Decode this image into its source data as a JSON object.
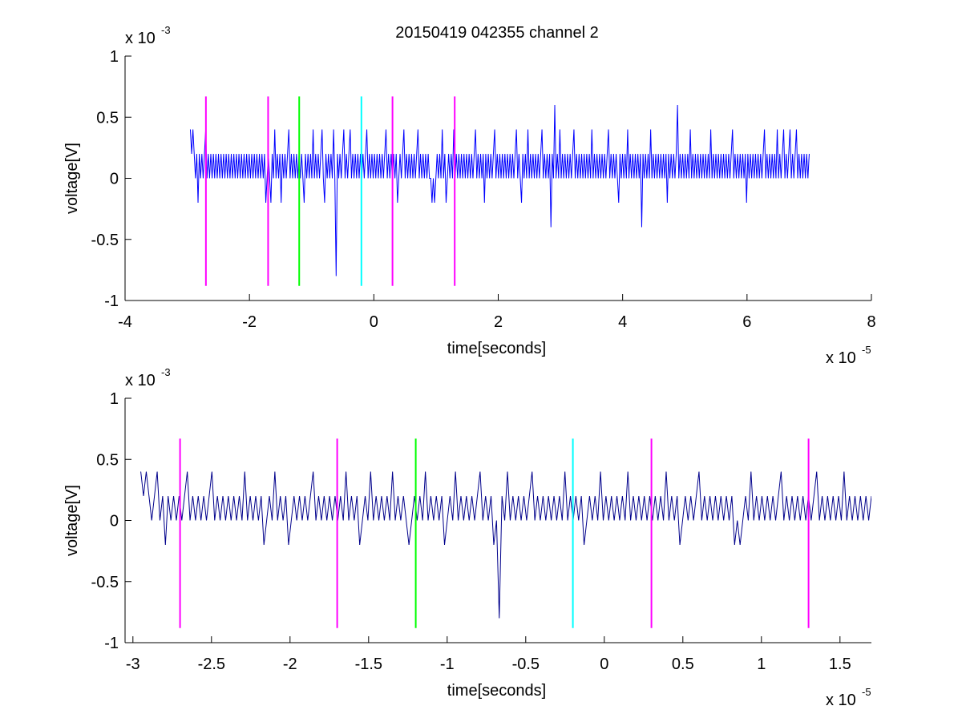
{
  "figure": {
    "title": "20150419 042355 channel 2"
  },
  "chart_data": [
    {
      "type": "line",
      "title": "20150419 042355 channel 2",
      "xlabel": "time[seconds]",
      "ylabel": "voltage[V]",
      "x_exponent_label": "x 10",
      "x_exponent": "-5",
      "y_exponent_label": "x 10",
      "y_exponent": "-3",
      "xlim": [
        -4,
        8
      ],
      "ylim": [
        -1,
        1
      ],
      "xticks": [
        -4,
        -2,
        0,
        2,
        4,
        6,
        8
      ],
      "xtick_labels": [
        "-4",
        "-2",
        "0",
        "2",
        "4",
        "6",
        "8"
      ],
      "yticks": [
        -1,
        -0.5,
        0,
        0.5,
        1
      ],
      "ytick_labels": [
        "-1",
        "-0.5",
        "0",
        "0.5",
        "1"
      ],
      "grid": false,
      "series": [
        {
          "color": "#0000ff",
          "x_start": -2.95,
          "x_end": 7.0,
          "levels": [
            0,
            0.2
          ],
          "values": [
            0.4,
            0.2,
            0.4,
            0.2,
            0,
            0.2,
            -0.2,
            0.2,
            0,
            0.2,
            0,
            0.2,
            0.4,
            0,
            0.2,
            0,
            0.2,
            0,
            0.2,
            0,
            0.2,
            0,
            0.2,
            0,
            0.2,
            0,
            0.2,
            0,
            0.2,
            0,
            0.2,
            0,
            0.2,
            0,
            0.2,
            0,
            0.2,
            0,
            0.2,
            0,
            0.2,
            0,
            0.2,
            0,
            0.2,
            0,
            0.2,
            0,
            0.2,
            0,
            0.2,
            0,
            0.2,
            0,
            0.2,
            0,
            0.2,
            0,
            0.2,
            -0.2,
            0,
            0.2,
            0,
            -0.2,
            0.2,
            0,
            0.4,
            0,
            0.2,
            0,
            0.2,
            -0.2,
            0.2,
            0,
            0.2,
            0,
            0.2,
            0.4,
            0,
            0.2,
            0,
            0.2,
            0,
            0.2,
            0,
            0.2,
            0,
            0.2,
            0,
            -0.2,
            0.2,
            0,
            0.2,
            0,
            0.2,
            0,
            0.4,
            0,
            0.2,
            0,
            0.2,
            0,
            0.2,
            0.4,
            0,
            -0.2,
            0.2,
            0,
            0.2,
            0,
            0.2,
            0,
            0.4,
            0,
            -0.8,
            0.2,
            0,
            0.2,
            0,
            0.2,
            0.4,
            0,
            0.2,
            0,
            0.2,
            0.4,
            0,
            0.2,
            0,
            0.2,
            0,
            0.2,
            0,
            0.2,
            0,
            0.2,
            0,
            0.2,
            0.4,
            0,
            0.2,
            0,
            0.2,
            0,
            0.2,
            0,
            0.2,
            0,
            0.2,
            0,
            0.2,
            0,
            0.2,
            0.4,
            0,
            0.2,
            0,
            0.2,
            0,
            0.2,
            0,
            0.2,
            -0.2,
            0,
            0.2,
            0,
            0.2,
            0.4,
            0,
            0.2,
            0,
            0.2,
            0,
            0.2,
            0,
            0.2,
            0,
            0.2,
            0.4,
            0,
            0.2,
            0,
            0.2,
            0,
            0.2,
            0,
            0.2,
            0,
            0,
            -0.2,
            0,
            -0.2,
            0,
            0.2,
            0,
            0.2,
            0,
            0.4,
            0,
            0.2,
            -0.2,
            0,
            0.2,
            0,
            0.2,
            0,
            0.4,
            0,
            0.2,
            0,
            0.2,
            0,
            0.2,
            0,
            0.2,
            0,
            0.2,
            0,
            0.2,
            0,
            0.2,
            0,
            0.2,
            0.4,
            0,
            0.2,
            0,
            0.2,
            0,
            0.2,
            -0.2,
            0.2,
            0,
            0.2,
            0,
            0.2,
            0,
            0.2,
            0.4,
            0,
            0.2,
            0,
            0.2,
            0,
            0.2,
            0,
            0.2,
            0,
            0.2,
            0,
            0.2,
            0,
            0.2,
            0,
            0.2,
            0.4,
            0,
            0.2,
            0,
            -0.2,
            0.2,
            0,
            0.2,
            0,
            0.4,
            0,
            0.2,
            0,
            0.2,
            0,
            0.2,
            0,
            0.2,
            0,
            0.2,
            0.4,
            0,
            0.2,
            0,
            0.2,
            0,
            0.2,
            -0.4,
            0.2,
            0,
            0.6,
            0,
            0.2,
            0,
            0.4,
            0,
            0.2,
            0,
            0.2,
            0,
            0.2,
            0,
            0.2,
            0,
            0.2,
            0.4,
            0,
            0.2,
            0,
            0.2,
            0,
            0.2,
            0,
            0.2,
            0,
            0.2,
            0,
            0.2,
            0,
            0.4,
            0,
            0.2,
            0,
            0.2,
            0,
            0.2,
            0,
            0.2,
            0,
            0.2,
            0,
            0.2,
            0.4,
            0,
            0.2,
            0,
            0.2,
            0,
            0.2,
            0,
            -0.2,
            0.2,
            0,
            0.2,
            0,
            0.2,
            0,
            0.4,
            0,
            0.2,
            0,
            0.2,
            0,
            0.2,
            0,
            0.2,
            0,
            0.2,
            -0.4,
            0.2,
            0,
            0.2,
            0,
            0.2,
            0,
            0.4,
            0,
            0.2,
            0,
            0.2,
            0,
            0.2,
            0,
            0.2,
            0,
            0.2,
            0,
            0.2,
            -0.2,
            0.2,
            0,
            0.2,
            0,
            0.2,
            0,
            0.2,
            0.6,
            0,
            0.2,
            0,
            0.2,
            0,
            0.2,
            0,
            0.2,
            0,
            0.4,
            0,
            0.2,
            0,
            0.2,
            0,
            0.2,
            0,
            0.2,
            0,
            0.2,
            0,
            0.2,
            0,
            0.2,
            0,
            0.4,
            0,
            0.2,
            0,
            0.2,
            0,
            0.2,
            0,
            0.2,
            0,
            0.2,
            0,
            0.2,
            0,
            0.2,
            0,
            0.2,
            0.4,
            0,
            0.2,
            0,
            0.2,
            0,
            0.2,
            0,
            0.2,
            0,
            0.2,
            -0.2,
            0.2,
            0,
            0.2,
            0,
            0.2,
            0,
            0.2,
            0,
            0.2,
            0,
            0.2,
            0,
            0.2,
            0.4,
            0,
            0.2,
            0,
            0.2,
            0,
            0.2,
            0,
            0.2,
            0,
            0.4,
            0,
            0.2,
            0,
            0.2,
            0.4,
            0,
            0.2,
            0,
            0.2,
            0.4,
            0,
            0.2,
            0,
            0.2,
            0.4,
            0,
            0.2,
            0,
            0.2,
            0,
            0.2,
            0,
            0.2,
            0,
            0.2
          ]
        },
        {
          "type": "vline",
          "color": "#ff00ff",
          "x": -2.7,
          "y": [
            -0.88,
            0.67
          ]
        },
        {
          "type": "vline",
          "color": "#ff00ff",
          "x": -1.7,
          "y": [
            -0.88,
            0.67
          ]
        },
        {
          "type": "vline",
          "color": "#00ff00",
          "x": -1.2,
          "y": [
            -0.88,
            0.67
          ]
        },
        {
          "type": "vline",
          "color": "#00ffff",
          "x": -0.2,
          "y": [
            -0.88,
            0.67
          ]
        },
        {
          "type": "vline",
          "color": "#ff00ff",
          "x": 0.3,
          "y": [
            -0.88,
            0.67
          ]
        },
        {
          "type": "vline",
          "color": "#ff00ff",
          "x": 1.3,
          "y": [
            -0.88,
            0.67
          ]
        }
      ]
    },
    {
      "type": "line",
      "title": "",
      "xlabel": "time[seconds]",
      "ylabel": "voltage[V]",
      "x_exponent_label": "x 10",
      "x_exponent": "-5",
      "y_exponent_label": "x 10",
      "y_exponent": "-3",
      "xlim": [
        -3.05,
        1.7
      ],
      "ylim": [
        -1,
        1
      ],
      "xticks": [
        -3,
        -2.5,
        -2,
        -1.5,
        -1,
        -0.5,
        0,
        0.5,
        1,
        1.5
      ],
      "xtick_labels": [
        "-3",
        "-2.5",
        "-2",
        "-1.5",
        "-1",
        "-0.5",
        "0",
        "0.5",
        "1",
        "1.5"
      ],
      "yticks": [
        -1,
        -0.5,
        0,
        0.5,
        1
      ],
      "ytick_labels": [
        "-1",
        "-0.5",
        "0",
        "0.5",
        "1"
      ],
      "grid": false,
      "series": [
        {
          "color": "#00008b",
          "x_start": -2.95,
          "x_end": 1.7,
          "values": [
            0.4,
            0.2,
            0.4,
            0.2,
            0,
            0.2,
            0.4,
            0,
            0.2,
            -0.2,
            0.2,
            0,
            0.2,
            0,
            0.2,
            0,
            0.2,
            0.4,
            0,
            0.2,
            0,
            0.2,
            0,
            0.2,
            0,
            0.2,
            0.4,
            0,
            0.2,
            0,
            0.2,
            0,
            0.2,
            0,
            0.2,
            0,
            0.2,
            0,
            0.4,
            0,
            0.2,
            0,
            0.2,
            0,
            0.2,
            -0.2,
            0,
            0.2,
            0,
            0.4,
            0,
            0.2,
            0,
            0.2,
            -0.2,
            0,
            0.2,
            0,
            0.2,
            0,
            0.2,
            0,
            0.2,
            0.4,
            0,
            0.2,
            0,
            0.2,
            0,
            0.2,
            0,
            0.2,
            0,
            0.2,
            0,
            0.4,
            0,
            0.2,
            0,
            0.2,
            -0.2,
            0,
            0.2,
            0,
            0.4,
            0,
            0.2,
            0,
            0.2,
            0,
            0.2,
            0,
            0.4,
            0,
            0.2,
            0,
            0.2,
            0,
            -0.2,
            0,
            0.2,
            0,
            0.2,
            0,
            0.4,
            0,
            0.2,
            0,
            0.2,
            0,
            0.2,
            -0.2,
            0,
            0.2,
            0,
            0.4,
            0,
            0.2,
            0,
            0.2,
            0,
            0.2,
            0,
            0.2,
            0.4,
            0,
            0.2,
            0,
            0.2,
            -0.2,
            0,
            -0.8,
            0.2,
            0,
            0.4,
            0,
            0.2,
            0,
            0.2,
            0,
            0.2,
            0,
            0.2,
            0.4,
            0,
            0.2,
            0,
            0.2,
            0,
            0.2,
            0,
            0.2,
            0,
            0.2,
            0,
            0.4,
            0,
            0.2,
            0,
            0.2,
            0,
            0.2,
            -0.2,
            0,
            0.2,
            0,
            0.2,
            0,
            0.4,
            0,
            0.2,
            0,
            0.2,
            0,
            0.2,
            0,
            0.2,
            0,
            0.4,
            0,
            0.2,
            0,
            0.2,
            0,
            0.2,
            0,
            0.2,
            0,
            0.2,
            0,
            0.2,
            0,
            0.4,
            0,
            0.2,
            0,
            0.2,
            -0.2,
            0,
            0.2,
            0,
            0.2,
            0,
            0.2,
            0.4,
            0,
            0.2,
            0,
            0.2,
            0,
            0.2,
            0,
            0.2,
            0,
            0.2,
            0,
            0.2,
            -0.2,
            0,
            -0.2,
            0,
            0.2,
            0,
            0.4,
            0,
            0.2,
            0,
            0.2,
            0,
            0.2,
            0,
            0.2,
            0,
            0.2,
            0.4,
            0,
            0.2,
            0,
            0.2,
            0,
            0.2,
            0,
            0.2,
            0,
            0.2,
            0,
            0.2,
            0.4,
            0,
            0.2,
            0,
            0.2,
            0,
            0.2,
            0,
            0.2,
            0,
            0.4,
            0,
            0.2,
            0,
            0.2,
            0,
            0.2,
            0,
            0.2,
            0,
            0.2
          ]
        },
        {
          "type": "vline",
          "color": "#ff00ff",
          "x": -2.7,
          "y": [
            -0.88,
            0.67
          ]
        },
        {
          "type": "vline",
          "color": "#ff00ff",
          "x": -1.7,
          "y": [
            -0.88,
            0.67
          ]
        },
        {
          "type": "vline",
          "color": "#00ff00",
          "x": -1.2,
          "y": [
            -0.88,
            0.67
          ]
        },
        {
          "type": "vline",
          "color": "#00ffff",
          "x": -0.2,
          "y": [
            -0.88,
            0.67
          ]
        },
        {
          "type": "vline",
          "color": "#ff00ff",
          "x": 0.3,
          "y": [
            -0.88,
            0.67
          ]
        },
        {
          "type": "vline",
          "color": "#ff00ff",
          "x": 1.3,
          "y": [
            -0.88,
            0.67
          ]
        }
      ]
    }
  ]
}
